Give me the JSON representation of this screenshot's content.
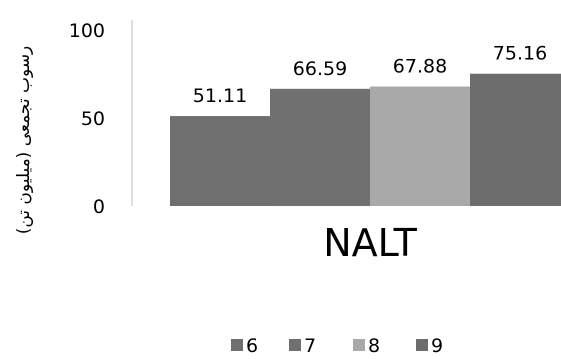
{
  "chart_data": {
    "type": "bar",
    "categories": [
      "NALT"
    ],
    "series": [
      {
        "name": "6",
        "values": [
          51.11
        ],
        "color": "#6f6f6f",
        "label": "51.11"
      },
      {
        "name": "7",
        "values": [
          66.59
        ],
        "color": "#707070",
        "label": "66.59"
      },
      {
        "name": "8",
        "values": [
          67.88
        ],
        "color": "#a9a9a9",
        "label": "67.88"
      },
      {
        "name": "9",
        "values": [
          75.16
        ],
        "color": "#6d6d6d",
        "label": "75.16"
      }
    ],
    "ylabel": "رسوب تجمعی (میلیون تن)",
    "ylim": [
      0,
      100
    ],
    "yticks": [
      "0",
      "50",
      "100"
    ],
    "grid": false,
    "legend_position": "bottom"
  }
}
